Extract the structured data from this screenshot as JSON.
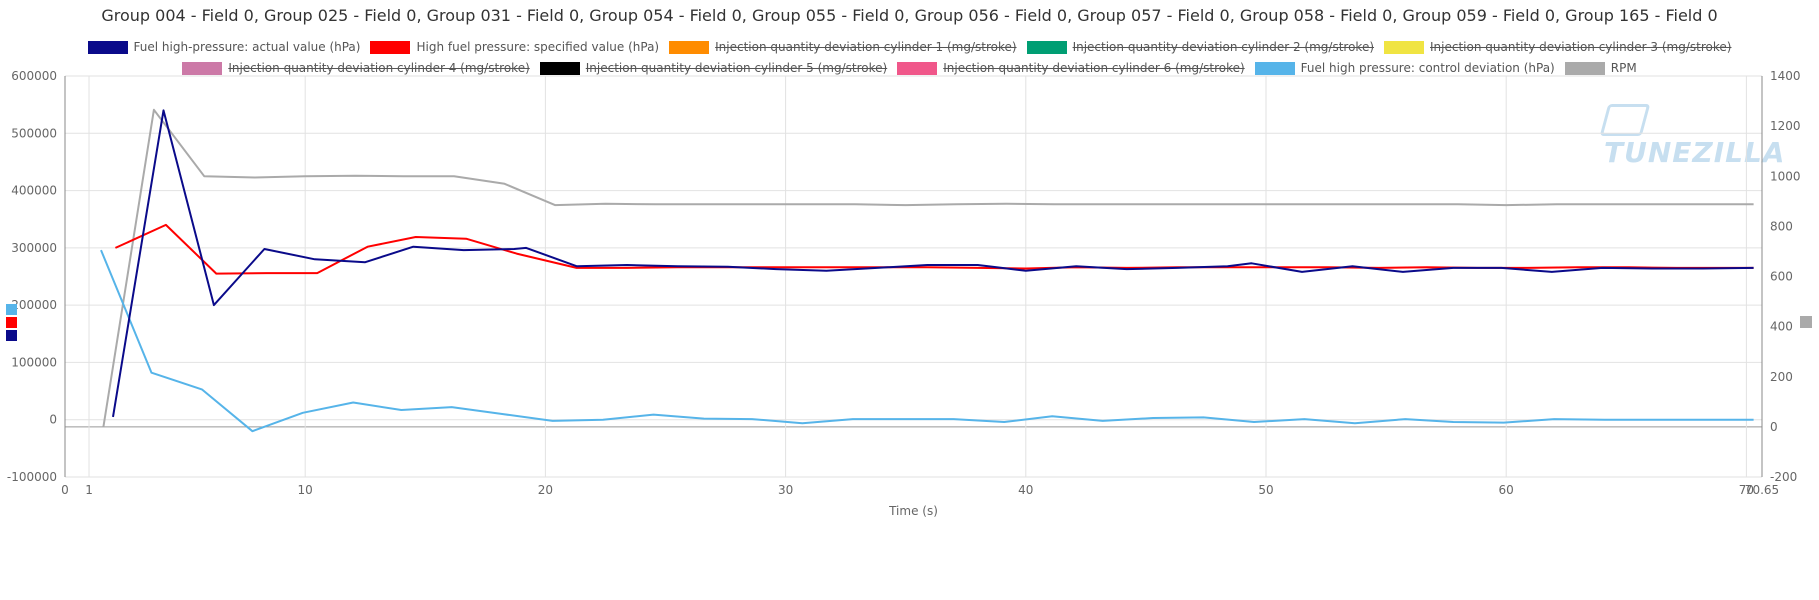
{
  "title": "Group 004 - Field 0, Group 025 - Field 0, Group 031 - Field 0, Group 054 - Field 0, Group 055 - Field 0, Group 056 - Field 0, Group 057 - Field 0, Group 058 - Field 0, Group 059 - Field 0, Group 165 - Field 0",
  "watermark": "TUNEZILLA",
  "legend_rows": [
    [
      {
        "label": "Fuel high-pressure: actual value (hPa)",
        "color": "#0a0a8a",
        "hidden": false
      },
      {
        "label": "High fuel pressure: specified value (hPa)",
        "color": "#ff0000",
        "hidden": false
      },
      {
        "label": "Injection quantity deviation cylinder 1 (mg/stroke)",
        "color": "#ff8c00",
        "hidden": true
      },
      {
        "label": "Injection quantity deviation cylinder 2 (mg/stroke)",
        "color": "#009e73",
        "hidden": true
      },
      {
        "label": "Injection quantity deviation cylinder 3 (mg/stroke)",
        "color": "#f0e442",
        "hidden": true
      }
    ],
    [
      {
        "label": "Injection quantity deviation cylinder 4 (mg/stroke)",
        "color": "#cc79a7",
        "hidden": true
      },
      {
        "label": "Injection quantity deviation cylinder 5 (mg/stroke)",
        "color": "#000000",
        "hidden": true
      },
      {
        "label": "Injection quantity deviation cylinder 6 (mg/stroke)",
        "color": "#f0578a",
        "hidden": true
      },
      {
        "label": "Fuel high pressure: control deviation (hPa)",
        "color": "#56b4e9",
        "hidden": false
      },
      {
        "label": "RPM",
        "color": "#aaaaaa",
        "hidden": false
      }
    ]
  ],
  "chart_data": {
    "type": "line",
    "title": "Group 004 - Field 0, Group 025 - Field 0, Group 031 - Field 0, Group 054 - Field 0, Group 055 - Field 0, Group 056 - Field 0, Group 057 - Field 0, Group 058 - Field 0, Group 059 - Field 0, Group 165 - Field 0",
    "xlabel": "Time (s)",
    "xlim": [
      0,
      70.65
    ],
    "x_ticks": [
      "0",
      "1",
      "10",
      "20",
      "30",
      "40",
      "50",
      "60",
      "70",
      "70.65"
    ],
    "x_tick_values": [
      0,
      1,
      10,
      20,
      30,
      40,
      50,
      60,
      70,
      70.65
    ],
    "ylim_left": [
      -100000,
      600000
    ],
    "y_ticks_left": [
      -100000,
      0,
      100000,
      200000,
      300000,
      400000,
      500000,
      600000
    ],
    "ylim_right": [
      -200,
      1400
    ],
    "y_ticks_right": [
      -200,
      0,
      200,
      400,
      600,
      800,
      1000,
      1200,
      1400
    ],
    "grid": true,
    "legend_placement": "top",
    "series": [
      {
        "name": "Fuel high-pressure: actual value (hPa)",
        "axis": "left",
        "color": "#0a0a8a",
        "x": [
          2.0,
          4.1,
          6.2,
          8.3,
          10.4,
          12.5,
          14.5,
          16.6,
          18.7,
          19.2,
          21.3,
          23.4,
          25.5,
          27.6,
          29.6,
          31.7,
          33.8,
          35.9,
          38.0,
          39.0,
          40.0,
          42.1,
          44.2,
          46.3,
          48.4,
          49.4,
          51.5,
          53.6,
          55.7,
          57.8,
          59.8,
          61.9,
          64.0,
          66.1,
          68.2,
          70.3
        ],
        "y": [
          5000,
          540000,
          200000,
          298000,
          280000,
          275000,
          302000,
          296000,
          298000,
          300000,
          268000,
          270000,
          268000,
          267000,
          263000,
          260000,
          265000,
          270000,
          270000,
          265000,
          260000,
          268000,
          263000,
          265000,
          268000,
          273000,
          258000,
          268000,
          258000,
          265000,
          265000,
          258000,
          265000,
          264000,
          264000,
          265000
        ]
      },
      {
        "name": "High fuel pressure: specified value (hPa)",
        "axis": "left",
        "color": "#ff0000",
        "x": [
          2.1,
          4.2,
          6.3,
          8.4,
          10.5,
          12.6,
          14.6,
          16.7,
          18.8,
          21.3,
          23.4,
          25.5,
          27.6,
          29.6,
          31.7,
          33.8,
          35.9,
          38.0,
          40.0,
          42.1,
          44.2,
          46.3,
          48.4,
          50.5,
          52.6,
          54.7,
          56.7,
          58.8,
          60.9,
          63.0,
          65.1,
          67.1,
          69.2,
          70.3
        ],
        "y": [
          300000,
          340000,
          255000,
          256000,
          256000,
          302000,
          319000,
          316000,
          290000,
          265000,
          265000,
          266000,
          266000,
          266000,
          266000,
          266000,
          266000,
          265000,
          264000,
          266000,
          265000,
          266000,
          266000,
          266000,
          266000,
          265000,
          266000,
          265000,
          265000,
          266000,
          266000,
          265000,
          265000,
          265000
        ]
      },
      {
        "name": "Fuel high pressure: control deviation (hPa)",
        "axis": "left",
        "color": "#56b4e9",
        "x": [
          1.5,
          3.6,
          5.7,
          7.8,
          9.9,
          12.0,
          14.0,
          16.1,
          18.2,
          20.3,
          22.4,
          24.5,
          26.6,
          28.6,
          30.7,
          32.8,
          34.9,
          37.0,
          39.1,
          41.1,
          43.2,
          45.3,
          47.4,
          49.5,
          51.6,
          53.7,
          55.8,
          57.8,
          59.9,
          62.0,
          64.1,
          66.2,
          68.3,
          70.3
        ],
        "y": [
          296000,
          82000,
          53000,
          -20000,
          12000,
          30000,
          17000,
          22000,
          10000,
          -2000,
          0,
          9000,
          2000,
          1000,
          -6000,
          1000,
          1000,
          1000,
          -4000,
          6000,
          -2000,
          3000,
          4000,
          -4000,
          1000,
          -6000,
          1000,
          -4000,
          -5000,
          1000,
          0,
          0,
          0,
          0
        ]
      },
      {
        "name": "RPM",
        "axis": "right",
        "color": "#aaaaaa",
        "x": [
          1.6,
          3.7,
          5.8,
          7.9,
          10.0,
          12.1,
          14.1,
          16.2,
          18.3,
          20.4,
          22.5,
          24.6,
          26.7,
          28.8,
          30.8,
          32.9,
          35.0,
          37.1,
          39.2,
          41.2,
          43.3,
          45.4,
          47.5,
          49.6,
          51.7,
          53.8,
          55.9,
          58.0,
          60.0,
          62.1,
          64.2,
          66.3,
          68.4,
          70.3
        ],
        "y": [
          0,
          1265,
          1000,
          995,
          1000,
          1002,
          1000,
          1000,
          970,
          885,
          890,
          888,
          888,
          888,
          888,
          888,
          885,
          888,
          890,
          888,
          888,
          888,
          888,
          888,
          888,
          888,
          888,
          888,
          885,
          888,
          888,
          888,
          888,
          888
        ]
      }
    ]
  }
}
